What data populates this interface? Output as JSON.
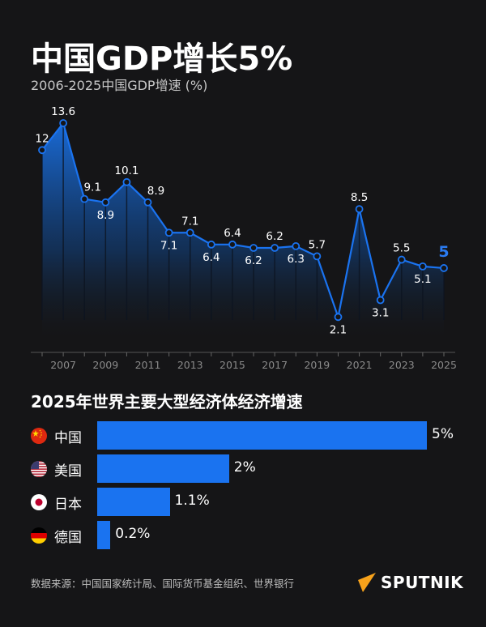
{
  "header": {
    "title": "中国GDP增长5%",
    "subtitle": "2006-2025中国GDP增速 (%)"
  },
  "chart_data": [
    {
      "type": "area",
      "title": "2006-2025中国GDP增速 (%)",
      "x": [
        2006,
        2007,
        2008,
        2009,
        2010,
        2011,
        2012,
        2013,
        2014,
        2015,
        2016,
        2017,
        2018,
        2019,
        2020,
        2021,
        2022,
        2023,
        2024,
        2025
      ],
      "values": [
        12,
        13.6,
        9.1,
        8.9,
        10.1,
        8.9,
        7.1,
        7.1,
        6.4,
        6.4,
        6.2,
        6.2,
        6.3,
        5.7,
        2.1,
        8.5,
        3.1,
        5.5,
        5.1,
        5
      ],
      "data_labels": [
        "12",
        "13.6",
        "9.1",
        "8.9",
        "10.1",
        "8.9",
        "7.1",
        "7.1",
        "6.4",
        "6.4",
        "6.2",
        "6.2",
        "6.3",
        "5.7",
        "2.1",
        "8.5",
        "3.1",
        "5.5",
        "5.1",
        "5"
      ],
      "x_tick_labels": [
        "2007",
        "2009",
        "2011",
        "2013",
        "2015",
        "2017",
        "2019",
        "2021",
        "2023",
        "2025"
      ],
      "ylim": [
        0,
        14.3
      ],
      "grid": false,
      "line_color": "#1a73f0",
      "highlight_color": "#2a7bf2"
    },
    {
      "type": "bar",
      "orientation": "horizontal",
      "title": "2025年世界主要大型经济体经济增速",
      "categories": [
        "中国",
        "美国",
        "日本",
        "德国"
      ],
      "values": [
        5,
        2,
        1.1,
        0.2
      ],
      "data_labels": [
        "5%",
        "2%",
        "1.1%",
        "0.2%"
      ],
      "flag_icons": [
        "china-flag-icon",
        "usa-flag-icon",
        "japan-flag-icon",
        "germany-flag-icon"
      ],
      "bar_color": "#1a73f0"
    }
  ],
  "footer": {
    "source": "数据来源：中国国家统计局、国际货币基金组织、世界银行",
    "logo_text": "SPUTNIK",
    "logo_color": "#f7a21b"
  }
}
